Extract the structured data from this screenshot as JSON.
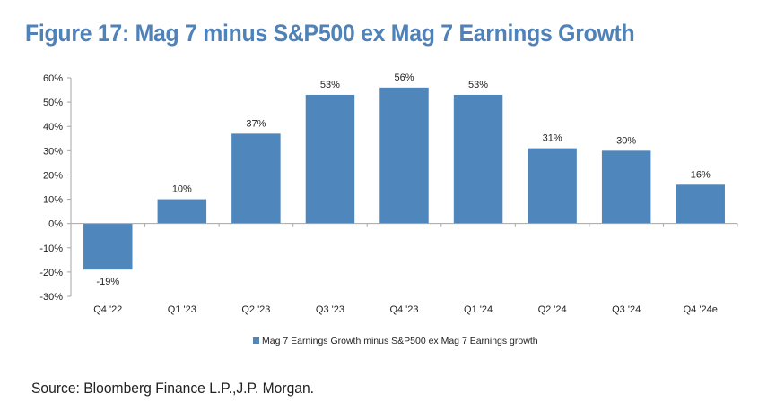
{
  "title": "Figure 17: Mag 7 minus S&P500 ex Mag 7 Earnings Growth",
  "source": "Source: Bloomberg Finance L.P.,J.P. Morgan.",
  "colors": {
    "title": "#4f82b9",
    "bar": "#4f87bd",
    "axis": "#a6a6a6",
    "text": "#222222"
  },
  "chart_data": {
    "type": "bar",
    "title": "Figure 17: Mag 7 minus S&P500 ex Mag 7 Earnings Growth",
    "xlabel": "",
    "ylabel": "",
    "categories": [
      "Q4 '22",
      "Q1 '23",
      "Q2 '23",
      "Q3 '23",
      "Q4 '23",
      "Q1 '24",
      "Q2 '24",
      "Q3 '24",
      "Q4 '24e"
    ],
    "series": [
      {
        "name": "Mag 7 Earnings Growth minus S&P500 ex Mag 7 Earnings growth",
        "values": [
          -19,
          10,
          37,
          53,
          56,
          53,
          31,
          30,
          16
        ],
        "labels": [
          "-19%",
          "10%",
          "37%",
          "53%",
          "56%",
          "53%",
          "31%",
          "30%",
          "16%"
        ]
      }
    ],
    "ylim": [
      -30,
      60
    ],
    "yticks": [
      60,
      50,
      40,
      30,
      20,
      10,
      0,
      -10,
      -20,
      -30
    ],
    "ytick_labels": [
      "60%",
      "50%",
      "40%",
      "30%",
      "20%",
      "10%",
      "0%",
      "-10%",
      "-20%",
      "-30%"
    ],
    "grid": false,
    "legend": {
      "position": "bottom-center",
      "entries": [
        "Mag 7 Earnings Growth minus S&P500 ex Mag 7 Earnings growth"
      ]
    }
  }
}
